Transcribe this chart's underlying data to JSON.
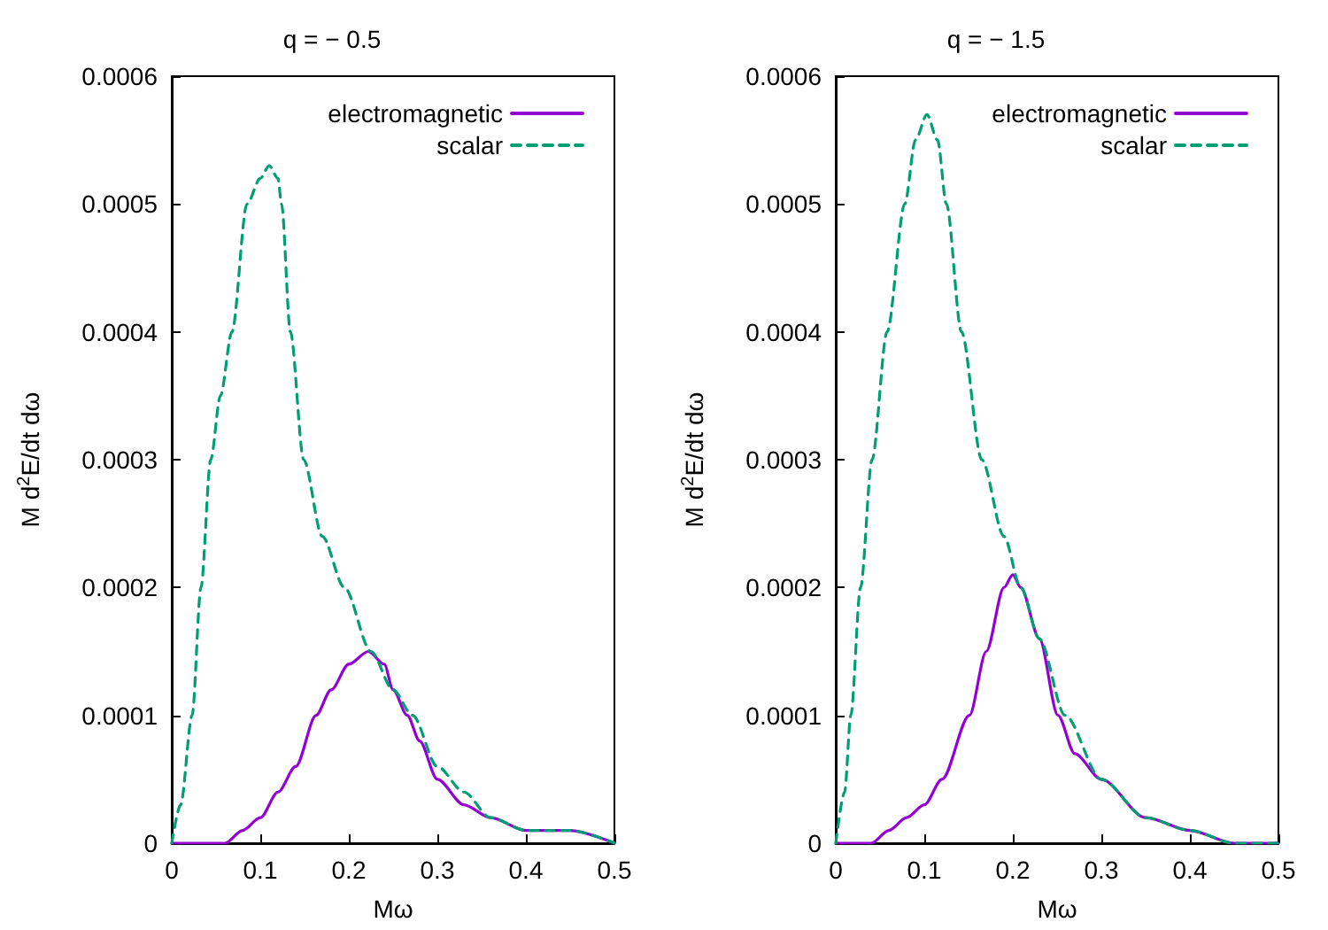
{
  "chart_data": [
    {
      "type": "line",
      "title": "q = − 0.5",
      "xlabel": "Mω",
      "ylabel": "M d$^{2}$E/dt dω",
      "xlim": [
        0,
        0.5
      ],
      "xticks": [
        0,
        0.1,
        0.2,
        0.3,
        0.4,
        0.5
      ],
      "ylim": [
        0,
        0.0006
      ],
      "yticks": [
        0,
        0.0001,
        0.0002,
        0.0003,
        0.0004,
        0.0005,
        0.0006
      ],
      "legend": "top right",
      "marker": "none",
      "series": [
        {
          "name": "electromagnetic",
          "color": "#9400d3",
          "line_style": "solid",
          "x": [
            0,
            0.04,
            0.06,
            0.08,
            0.1,
            0.12,
            0.14,
            0.163,
            0.18,
            0.2,
            0.222,
            0.24,
            0.25,
            0.266,
            0.28,
            0.3,
            0.33,
            0.36,
            0.4,
            0.45,
            0.5
          ],
          "values": [
            0,
            0,
            0,
            1e-05,
            2e-05,
            4e-05,
            6e-05,
            0.0001,
            0.00012,
            0.00014,
            0.00015,
            0.00014,
            0.00012,
            0.0001,
            8e-05,
            5e-05,
            3e-05,
            2e-05,
            1e-05,
            1e-05,
            0
          ]
        },
        {
          "name": "scalar",
          "color": "#009e73",
          "line_style": "dashed",
          "x": [
            0,
            0.01,
            0.023,
            0.033,
            0.044,
            0.055,
            0.068,
            0.085,
            0.1,
            0.11,
            0.12,
            0.124,
            0.134,
            0.149,
            0.17,
            0.195,
            0.225,
            0.25,
            0.272,
            0.3,
            0.33,
            0.36,
            0.4,
            0.45,
            0.5
          ],
          "values": [
            0,
            3e-05,
            0.0001,
            0.0002,
            0.0003,
            0.00035,
            0.0004,
            0.0005,
            0.00052,
            0.00053,
            0.00052,
            0.0005,
            0.0004,
            0.0003,
            0.00024,
            0.0002,
            0.00015,
            0.00012,
            0.0001,
            6e-05,
            4e-05,
            2e-05,
            1e-05,
            1e-05,
            0
          ]
        }
      ]
    },
    {
      "type": "line",
      "title": "q = − 1.5",
      "xlabel": "Mω",
      "ylabel": "M d$^{2}$E/dt dω",
      "xlim": [
        0,
        0.5
      ],
      "xticks": [
        0,
        0.1,
        0.2,
        0.3,
        0.4,
        0.5
      ],
      "ylim": [
        0,
        0.0006
      ],
      "yticks": [
        0,
        0.0001,
        0.0002,
        0.0003,
        0.0004,
        0.0005,
        0.0006
      ],
      "legend": "top right",
      "marker": "none",
      "series": [
        {
          "name": "electromagnetic",
          "color": "#9400d3",
          "line_style": "solid",
          "x": [
            0,
            0.04,
            0.06,
            0.08,
            0.1,
            0.12,
            0.151,
            0.17,
            0.19,
            0.2,
            0.209,
            0.23,
            0.251,
            0.27,
            0.3,
            0.35,
            0.4,
            0.45,
            0.5
          ],
          "values": [
            0,
            0,
            1e-05,
            2e-05,
            3e-05,
            5e-05,
            0.0001,
            0.00015,
            0.0002,
            0.00021,
            0.0002,
            0.00016,
            0.0001,
            7e-05,
            5e-05,
            2e-05,
            1e-05,
            0,
            0
          ]
        },
        {
          "name": "scalar",
          "color": "#009e73",
          "line_style": "dashed",
          "x": [
            0,
            0.01,
            0.017,
            0.028,
            0.041,
            0.058,
            0.078,
            0.09,
            0.103,
            0.115,
            0.125,
            0.142,
            0.165,
            0.19,
            0.209,
            0.23,
            0.259,
            0.3,
            0.35,
            0.4,
            0.45,
            0.5
          ],
          "values": [
            0,
            4e-05,
            0.0001,
            0.0002,
            0.0003,
            0.0004,
            0.0005,
            0.00055,
            0.00057,
            0.00055,
            0.0005,
            0.0004,
            0.0003,
            0.00024,
            0.0002,
            0.00016,
            0.0001,
            5e-05,
            2e-05,
            1e-05,
            0,
            0
          ]
        }
      ]
    }
  ]
}
